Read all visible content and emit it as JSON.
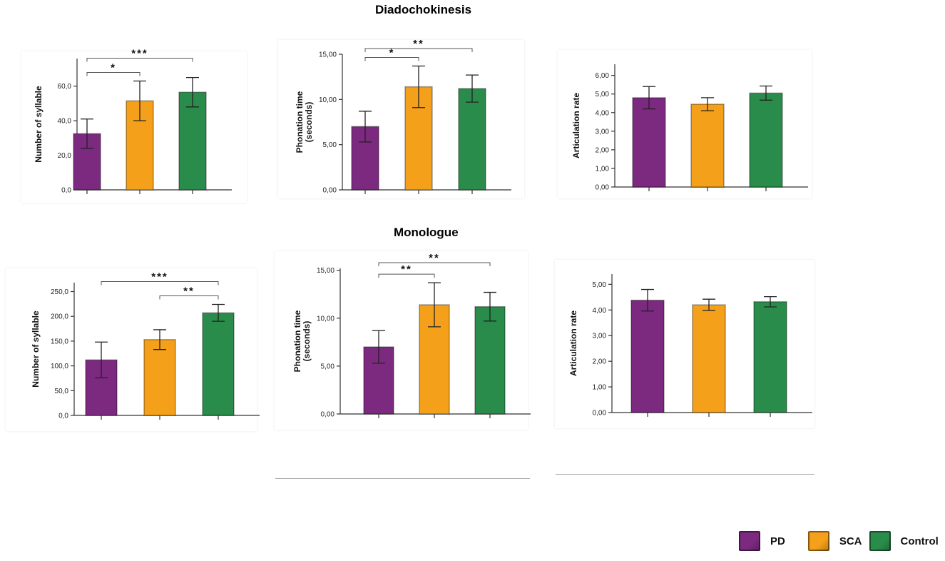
{
  "colors": {
    "PD": "#7b2a7f",
    "SCA": "#f5a01a",
    "Control": "#2a8c4a"
  },
  "sections": {
    "top": "Diadochokinesis",
    "bottom": "Monologue"
  },
  "legend": [
    {
      "label": "PD",
      "color": "#7b2a7f"
    },
    {
      "label": "SCA",
      "color": "#f5a01a"
    },
    {
      "label": "Control",
      "color": "#2a8c4a"
    }
  ],
  "chart_data": [
    {
      "id": "dk-syllables",
      "type": "bar",
      "section": "Diadochokinesis",
      "ylabel": "Number of syllable",
      "categories": [
        "PD",
        "SCA",
        "Control"
      ],
      "values": [
        32.5,
        51.5,
        56.5
      ],
      "errors": [
        8.5,
        11.5,
        8.5
      ],
      "ylim": [
        0,
        76
      ],
      "yticks": [
        0,
        20,
        40,
        60
      ],
      "ytick_labels": [
        "0,0",
        "20,0",
        "40,0",
        "60,0"
      ],
      "significance": [
        {
          "from": 0,
          "to": 1,
          "label": "*"
        },
        {
          "from": 0,
          "to": 2,
          "label": "***"
        }
      ]
    },
    {
      "id": "dk-phonation",
      "type": "bar",
      "section": "Diadochokinesis",
      "ylabel": [
        "Phonation time",
        "(seconds)"
      ],
      "categories": [
        "PD",
        "SCA",
        "Control"
      ],
      "values": [
        7.0,
        11.4,
        11.2
      ],
      "errors": [
        1.7,
        2.3,
        1.5
      ],
      "ylim": [
        0,
        15
      ],
      "yticks": [
        0,
        5,
        10,
        15
      ],
      "ytick_labels": [
        "0,00",
        "5,00",
        "10,00",
        "15,00"
      ],
      "significance": [
        {
          "from": 0,
          "to": 1,
          "label": "*"
        },
        {
          "from": 0,
          "to": 2,
          "label": "**"
        }
      ]
    },
    {
      "id": "dk-articulation",
      "type": "bar",
      "section": "Diadochokinesis",
      "ylabel": "Articulation rate",
      "categories": [
        "PD",
        "SCA",
        "Control"
      ],
      "values": [
        4.8,
        4.45,
        5.05
      ],
      "errors": [
        0.6,
        0.35,
        0.38
      ],
      "ylim": [
        0,
        6.6
      ],
      "yticks": [
        0,
        1,
        2,
        3,
        4,
        5,
        6
      ],
      "ytick_labels": [
        "0,00",
        "1,00",
        "2,00",
        "3,00",
        "4,00",
        "5,00",
        "6,00"
      ],
      "significance": []
    },
    {
      "id": "mono-syllables",
      "type": "bar",
      "section": "Monologue",
      "ylabel": "Number of syllable",
      "categories": [
        "PD",
        "SCA",
        "Control"
      ],
      "values": [
        112,
        153,
        207
      ],
      "errors": [
        36,
        20,
        17
      ],
      "ylim": [
        0,
        268
      ],
      "yticks": [
        0,
        50,
        100,
        150,
        200,
        250
      ],
      "ytick_labels": [
        "0,0",
        "50,0",
        "100,0",
        "150,0",
        "200,0",
        "250,0"
      ],
      "significance": [
        {
          "from": 1,
          "to": 2,
          "label": "**"
        },
        {
          "from": 0,
          "to": 2,
          "label": "***"
        }
      ]
    },
    {
      "id": "mono-phonation",
      "type": "bar",
      "section": "Monologue",
      "ylabel": [
        "Phonation time",
        "(seconds)"
      ],
      "categories": [
        "PD",
        "SCA",
        "Control"
      ],
      "values": [
        7.0,
        11.4,
        11.2
      ],
      "errors": [
        1.7,
        2.3,
        1.5
      ],
      "ylim": [
        0,
        15.2
      ],
      "yticks": [
        0,
        5,
        10,
        15
      ],
      "ytick_labels": [
        "0,00",
        "5,00",
        "10,00",
        "15,00"
      ],
      "significance": [
        {
          "from": 0,
          "to": 1,
          "label": "**"
        },
        {
          "from": 0,
          "to": 2,
          "label": "**"
        }
      ]
    },
    {
      "id": "mono-articulation",
      "type": "bar",
      "section": "Monologue",
      "ylabel": "Articulation rate",
      "categories": [
        "PD",
        "SCA",
        "Control"
      ],
      "values": [
        4.38,
        4.2,
        4.32
      ],
      "errors": [
        0.42,
        0.22,
        0.2
      ],
      "ylim": [
        0,
        5.4
      ],
      "yticks": [
        0,
        1,
        2,
        3,
        4,
        5
      ],
      "ytick_labels": [
        "0,00",
        "1,00",
        "2,00",
        "3,00",
        "4,00",
        "5,00"
      ],
      "significance": []
    }
  ]
}
